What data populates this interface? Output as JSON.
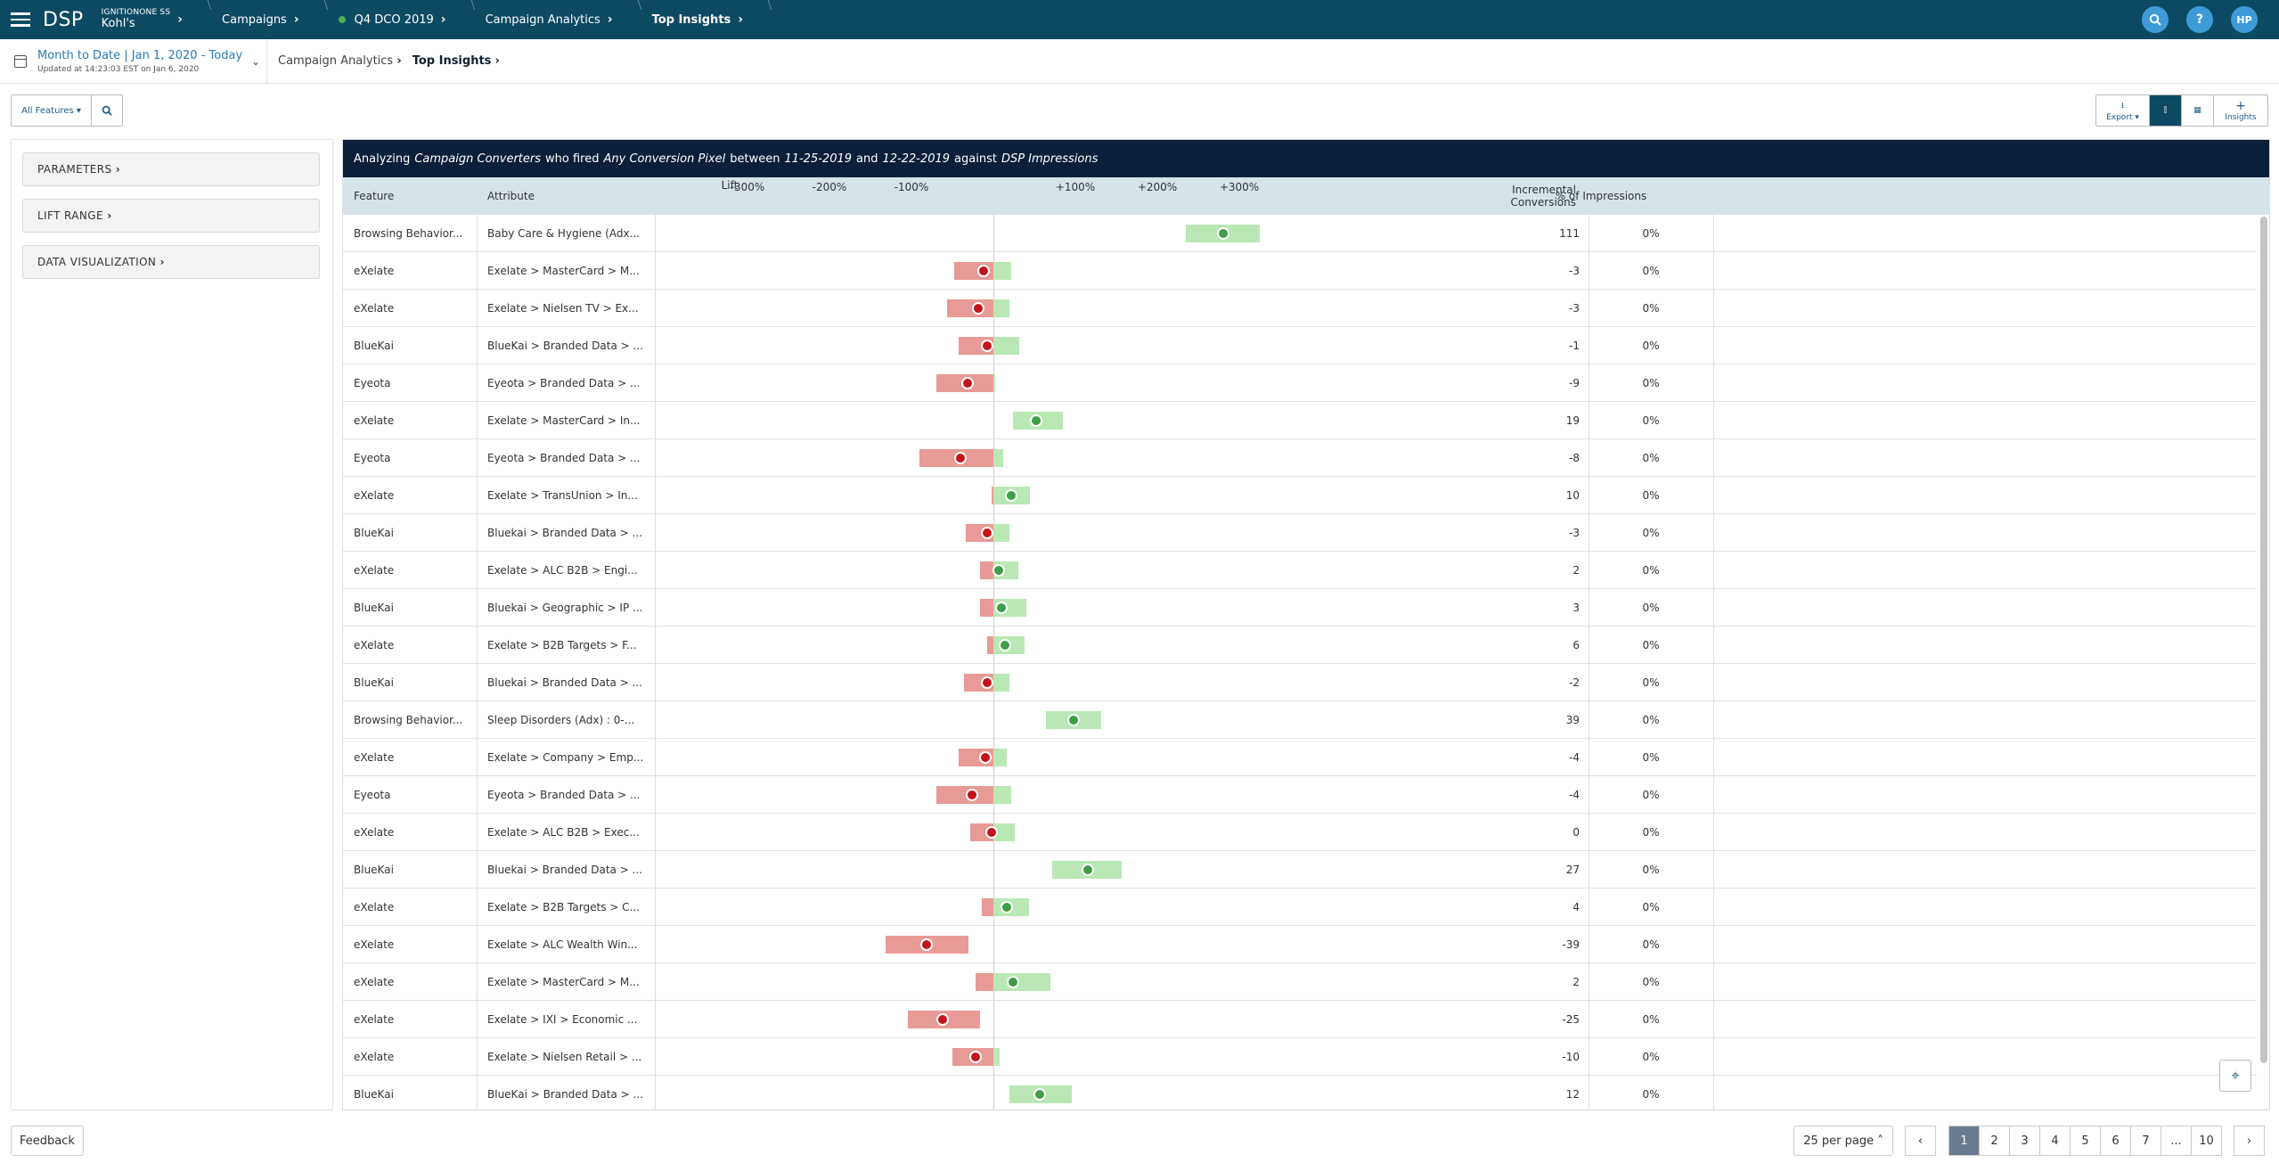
{
  "topbar": {
    "brand": "DSP",
    "client_small": "IGNITIONONE SS",
    "client": "Kohl's",
    "crumbs": [
      "Campaigns",
      "Q4 DCO 2019",
      "Campaign Analytics",
      "Top Insights"
    ],
    "avatar": "HP",
    "help": "?"
  },
  "subbar": {
    "date_range": "Month to Date | Jan 1, 2020 - Today",
    "updated": "Updated at 14:23:03 EST on Jan 6, 2020",
    "crumbs": [
      "Campaign Analytics",
      "Top Insights"
    ]
  },
  "toolbar": {
    "features_select": "All Features",
    "export": "Export",
    "insights": "Insights"
  },
  "left": {
    "parameters": "PARAMETERS",
    "lift_range": "LIFT RANGE",
    "data_vis": "DATA VISUALIZATION"
  },
  "banner": {
    "t1": "Analyzing",
    "i1": "Campaign Converters",
    "t2": "who fired",
    "i2": "Any Conversion Pixel",
    "t3": "between",
    "i3": "11-25-2019",
    "t4": "and",
    "i4": "12-22-2019",
    "t5": "against",
    "i5": "DSP Impressions"
  },
  "table": {
    "headers": {
      "feature": "Feature",
      "attribute": "Attribute",
      "lift": "Lift",
      "inc1": "Incremental",
      "inc2": "Conversions",
      "pct": "% of Impressions"
    },
    "ticks": [
      "-300%",
      "-200%",
      "-100%",
      "+100%",
      "+200%",
      "+300%"
    ],
    "rows": [
      {
        "feature": "Browsing Behavior...",
        "attribute": "Baby Care & Hygiene (Adx...",
        "inc": "111",
        "pct": "0%",
        "lift": 280,
        "lo": 235,
        "hi": 325
      },
      {
        "feature": "eXelate",
        "attribute": "Exelate > MasterCard > M...",
        "inc": "-3",
        "pct": "0%",
        "lift": -12,
        "lo": -48,
        "hi": 22
      },
      {
        "feature": "eXelate",
        "attribute": "Exelate > Nielsen TV > Ex...",
        "inc": "-3",
        "pct": "0%",
        "lift": -18,
        "lo": -56,
        "hi": 20
      },
      {
        "feature": "BlueKai",
        "attribute": "BlueKai > Branded Data > ...",
        "inc": "-1",
        "pct": "0%",
        "lift": -8,
        "lo": -42,
        "hi": 32
      },
      {
        "feature": "Eyeota",
        "attribute": "Eyeota > Branded Data > ...",
        "inc": "-9",
        "pct": "0%",
        "lift": -32,
        "lo": -70,
        "hi": 2
      },
      {
        "feature": "eXelate",
        "attribute": "Exelate > MasterCard > In...",
        "inc": "19",
        "pct": "0%",
        "lift": 52,
        "lo": 24,
        "hi": 85
      },
      {
        "feature": "Eyeota",
        "attribute": "Eyeota > Branded Data > ...",
        "inc": "-8",
        "pct": "0%",
        "lift": -40,
        "lo": -90,
        "hi": 12
      },
      {
        "feature": "eXelate",
        "attribute": "Exelate > TransUnion > In...",
        "inc": "10",
        "pct": "0%",
        "lift": 22,
        "lo": -2,
        "hi": 45
      },
      {
        "feature": "BlueKai",
        "attribute": "Bluekai > Branded Data > ...",
        "inc": "-3",
        "pct": "0%",
        "lift": -8,
        "lo": -34,
        "hi": 20
      },
      {
        "feature": "eXelate",
        "attribute": "Exelate > ALC B2B > Engi...",
        "inc": "2",
        "pct": "0%",
        "lift": 6,
        "lo": -16,
        "hi": 30
      },
      {
        "feature": "BlueKai",
        "attribute": "Bluekai > Geographic > IP ...",
        "inc": "3",
        "pct": "0%",
        "lift": 10,
        "lo": -16,
        "hi": 40
      },
      {
        "feature": "eXelate",
        "attribute": "Exelate > B2B Targets > F...",
        "inc": "6",
        "pct": "0%",
        "lift": 14,
        "lo": -8,
        "hi": 38
      },
      {
        "feature": "BlueKai",
        "attribute": "Bluekai > Branded Data > ...",
        "inc": "-2",
        "pct": "0%",
        "lift": -8,
        "lo": -36,
        "hi": 20
      },
      {
        "feature": "Browsing Behavior...",
        "attribute": "Sleep Disorders (Adx) : 0-...",
        "inc": "39",
        "pct": "0%",
        "lift": 98,
        "lo": 64,
        "hi": 132
      },
      {
        "feature": "eXelate",
        "attribute": "Exelate > Company > Emp...",
        "inc": "-4",
        "pct": "0%",
        "lift": -10,
        "lo": -42,
        "hi": 16
      },
      {
        "feature": "Eyeota",
        "attribute": "Eyeota > Branded Data > ...",
        "inc": "-4",
        "pct": "0%",
        "lift": -26,
        "lo": -70,
        "hi": 22
      },
      {
        "feature": "eXelate",
        "attribute": "Exelate > ALC B2B > Exec...",
        "inc": "0",
        "pct": "0%",
        "lift": -2,
        "lo": -28,
        "hi": 26
      },
      {
        "feature": "BlueKai",
        "attribute": "Bluekai > Branded Data > ...",
        "inc": "27",
        "pct": "0%",
        "lift": 115,
        "lo": 72,
        "hi": 157
      },
      {
        "feature": "eXelate",
        "attribute": "Exelate > B2B Targets > C...",
        "inc": "4",
        "pct": "0%",
        "lift": 16,
        "lo": -14,
        "hi": 44
      },
      {
        "feature": "eXelate",
        "attribute": "Exelate > ALC Wealth Win...",
        "inc": "-39",
        "pct": "0%",
        "lift": -82,
        "lo": -132,
        "hi": -30
      },
      {
        "feature": "eXelate",
        "attribute": "Exelate > MasterCard > M...",
        "inc": "2",
        "pct": "0%",
        "lift": 24,
        "lo": -22,
        "hi": 70
      },
      {
        "feature": "eXelate",
        "attribute": "Exelate > IXI > Economic ...",
        "inc": "-25",
        "pct": "0%",
        "lift": -62,
        "lo": -104,
        "hi": -16
      },
      {
        "feature": "eXelate",
        "attribute": "Exelate > Nielsen Retail > ...",
        "inc": "-10",
        "pct": "0%",
        "lift": -22,
        "lo": -50,
        "hi": 8
      },
      {
        "feature": "BlueKai",
        "attribute": "BlueKai > Branded Data > ...",
        "inc": "12",
        "pct": "0%",
        "lift": 56,
        "lo": 20,
        "hi": 96
      }
    ]
  },
  "footer": {
    "feedback": "Feedback",
    "per_page": "25 per page",
    "pages": [
      "1",
      "2",
      "3",
      "4",
      "5",
      "6",
      "7",
      "...",
      "10"
    ]
  },
  "colors": {
    "positive": "#b9e8b4",
    "positive_dot": "#3f9e45",
    "negative": "#e89a96",
    "negative_dot": "#c4141b",
    "nav": "#0c4a63",
    "banner": "#0b1f38"
  }
}
